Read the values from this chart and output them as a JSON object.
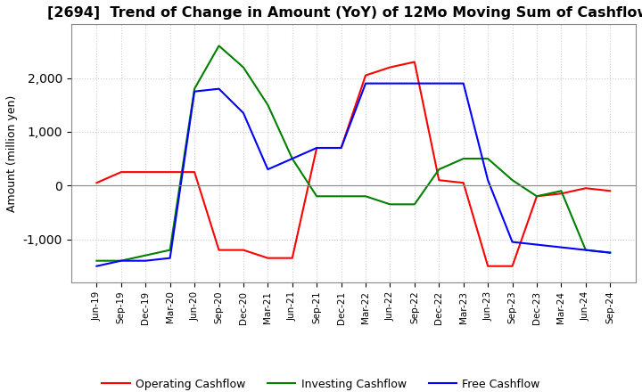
{
  "title": "[2694]  Trend of Change in Amount (YoY) of 12Mo Moving Sum of Cashflows",
  "ylabel": "Amount (million yen)",
  "background_color": "#ffffff",
  "grid_color": "#cccccc",
  "title_fontsize": 11.5,
  "labels": [
    "Jun-19",
    "Sep-19",
    "Dec-19",
    "Mar-20",
    "Jun-20",
    "Sep-20",
    "Dec-20",
    "Mar-21",
    "Jun-21",
    "Sep-21",
    "Dec-21",
    "Mar-22",
    "Jun-22",
    "Sep-22",
    "Dec-22",
    "Mar-23",
    "Jun-23",
    "Sep-23",
    "Dec-23",
    "Mar-24",
    "Jun-24",
    "Sep-24"
  ],
  "operating": [
    50,
    250,
    250,
    250,
    250,
    -1200,
    -1200,
    -1350,
    -1350,
    700,
    700,
    2050,
    2200,
    2300,
    100,
    50,
    -1500,
    -1500,
    -200,
    -150,
    -50,
    -100
  ],
  "investing": [
    -1400,
    -1400,
    -1300,
    -1200,
    1800,
    2600,
    2200,
    1500,
    500,
    -200,
    -200,
    -200,
    -350,
    -350,
    300,
    500,
    500,
    100,
    -200,
    -100,
    -1200,
    -1250
  ],
  "free": [
    -1500,
    -1400,
    -1400,
    -1350,
    1750,
    1800,
    1350,
    300,
    500,
    700,
    700,
    1900,
    1900,
    1900,
    1900,
    1900,
    100,
    -1050,
    -1100,
    -1150,
    -1200,
    -1250
  ],
  "operating_color": "#ff0000",
  "investing_color": "#008000",
  "free_color": "#0000ff",
  "ylim": [
    -1800,
    3000
  ],
  "yticks": [
    -1000,
    0,
    1000,
    2000
  ]
}
